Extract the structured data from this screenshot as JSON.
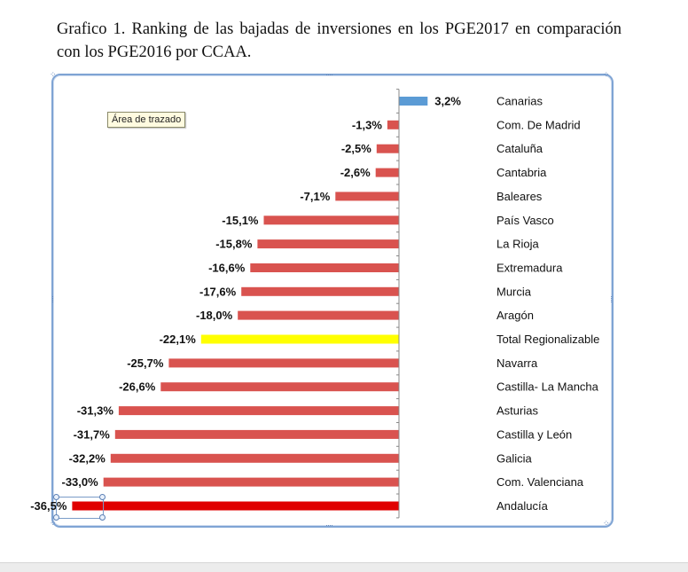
{
  "document": {
    "title": "Grafico 1. Ranking de las bajadas de inversiones en los PGE2017 en comparación con los PGE2016 por CCAA."
  },
  "tooltip": {
    "text": "Área de trazado"
  },
  "colors": {
    "positive": "#5b9bd5",
    "negative": "#d9534f",
    "total": "#ffff00",
    "lowest": "#e00000",
    "axis": "#888888"
  },
  "chart_data": {
    "type": "bar",
    "orientation": "horizontal",
    "title": "",
    "xlabel": "",
    "ylabel": "",
    "xlim": [
      -38,
      5
    ],
    "categories": [
      "Canarias",
      "Com. De Madrid",
      "Cataluña",
      "Cantabria",
      "Baleares",
      "País Vasco",
      "La Rioja",
      "Extremadura",
      "Murcia",
      "Aragón",
      "Total Regionalizable",
      "Navarra",
      "Castilla- La Mancha",
      "Asturias",
      "Castilla y León",
      "Galicia",
      "Com. Valenciana",
      "Andalucía"
    ],
    "values": [
      3.2,
      -1.3,
      -2.5,
      -2.6,
      -7.1,
      -15.1,
      -15.8,
      -16.6,
      -17.6,
      -18.0,
      -22.1,
      -25.7,
      -26.6,
      -31.3,
      -31.7,
      -32.2,
      -33.0,
      -36.5
    ],
    "labels": [
      "3,2%",
      "-1,3%",
      "-2,5%",
      "-2,6%",
      "-7,1%",
      "-15,1%",
      "-15,8%",
      "-16,6%",
      "-17,6%",
      "-18,0%",
      "-22,1%",
      "-25,7%",
      "-26,6%",
      "-31,3%",
      "-31,7%",
      "-32,2%",
      "-33,0%",
      "-36,5%"
    ],
    "highlights": {
      "Total Regionalizable": "total",
      "Andalucía": "lowest",
      "Canarias": "positive"
    }
  }
}
